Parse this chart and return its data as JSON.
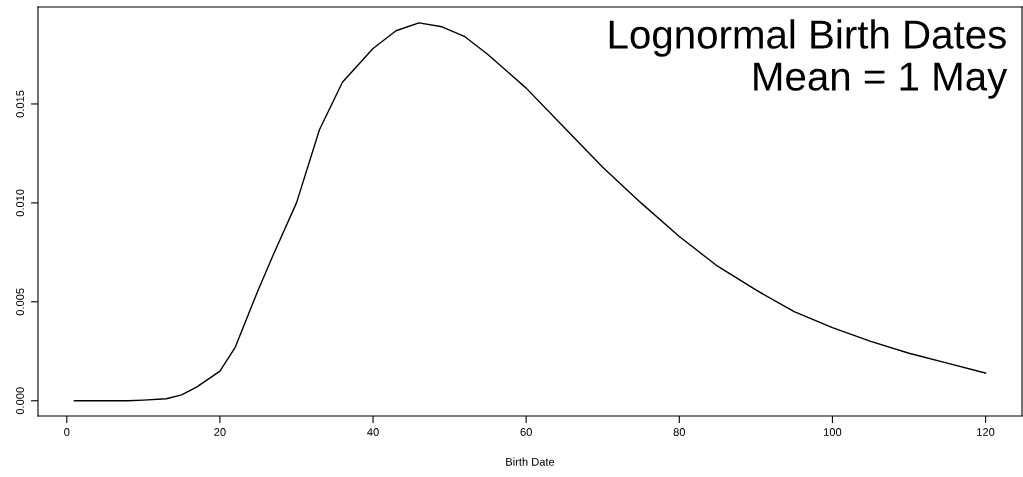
{
  "chart_data": {
    "type": "line",
    "xlabel": "Birth Date",
    "annotations": [
      "Lognormal Birth Dates\nMean = 1 May"
    ],
    "x": [
      1,
      5,
      8,
      10,
      13,
      15,
      17,
      20,
      22,
      25,
      27,
      30,
      33,
      36,
      40,
      43,
      46,
      49,
      52,
      55,
      60,
      65,
      70,
      75,
      80,
      85,
      90,
      95,
      100,
      105,
      110,
      115,
      120
    ],
    "series": [
      {
        "color": "#000000",
        "values": [
          0,
          0,
          0,
          3e-05,
          0.0001,
          0.0003,
          0.0007,
          0.0015,
          0.0027,
          0.0056,
          0.0074,
          0.01,
          0.0137,
          0.0161,
          0.0178,
          0.0187,
          0.0191,
          0.0189,
          0.0184,
          0.0175,
          0.0158,
          0.0138,
          0.0118,
          0.01,
          0.0083,
          0.0068,
          0.0056,
          0.0045,
          0.0037,
          0.003,
          0.0024,
          0.0019,
          0.0014
        ]
      }
    ],
    "xlim": [
      -3.76,
      124.76
    ],
    "ylim": [
      -0.00077,
      0.0199
    ],
    "xticks": [
      0,
      20,
      40,
      60,
      80,
      100,
      120
    ],
    "yticks": [
      {
        "value": 0,
        "label": "0.000"
      },
      {
        "value": 0.005,
        "label": "0.005"
      },
      {
        "value": 0.01,
        "label": "0.010"
      },
      {
        "value": 0.015,
        "label": "0.015"
      }
    ],
    "grid": false,
    "legend": false
  }
}
